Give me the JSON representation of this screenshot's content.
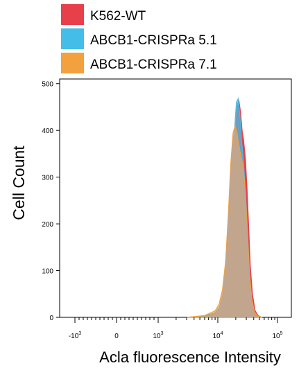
{
  "chart_data": {
    "type": "area",
    "title": "",
    "xlabel": "Acla fluorescence Intensity",
    "ylabel": "Cell Count",
    "x_scale": "biexponential",
    "xlim": [
      -2000,
      150000
    ],
    "ylim": [
      0,
      510
    ],
    "y_ticks": [
      {
        "value": 0,
        "label": "0"
      },
      {
        "value": 100,
        "label": "100"
      },
      {
        "value": 200,
        "label": "200"
      },
      {
        "value": 300,
        "label": "300"
      },
      {
        "value": 400,
        "label": "400"
      },
      {
        "value": 500,
        "label": "500"
      }
    ],
    "x_ticks": [
      {
        "value": -1000,
        "base": "-10",
        "exp": "3"
      },
      {
        "value": 0,
        "base": "0",
        "exp": ""
      },
      {
        "value": 1000,
        "base": "10",
        "exp": "3"
      },
      {
        "value": 10000,
        "base": "10",
        "exp": "4"
      },
      {
        "value": 100000,
        "base": "10",
        "exp": "5"
      }
    ],
    "legend": {
      "position": "top-left",
      "entries": [
        {
          "name": "K562-WT",
          "color": "#e8404a"
        },
        {
          "name": "ABCB1-CRISPRa 5.1",
          "color": "#45bde9"
        },
        {
          "name": "ABCB1-CRISPRa 7.1",
          "color": "#f3a03e"
        }
      ]
    },
    "series": [
      {
        "name": "K562-WT",
        "color": "#e8404a",
        "points": [
          [
            3000,
            0
          ],
          [
            6000,
            2
          ],
          [
            9000,
            8
          ],
          [
            11000,
            20
          ],
          [
            13000,
            45
          ],
          [
            15000,
            100
          ],
          [
            16500,
            180
          ],
          [
            18000,
            290
          ],
          [
            19500,
            390
          ],
          [
            21000,
            450
          ],
          [
            22500,
            465
          ],
          [
            24000,
            440
          ],
          [
            25500,
            400
          ],
          [
            27000,
            380
          ],
          [
            29000,
            340
          ],
          [
            31000,
            270
          ],
          [
            33000,
            190
          ],
          [
            35000,
            110
          ],
          [
            38000,
            50
          ],
          [
            42000,
            15
          ],
          [
            47000,
            4
          ],
          [
            55000,
            0
          ]
        ]
      },
      {
        "name": "ABCB1-CRISPRa 5.1",
        "color": "#45bde9",
        "points": [
          [
            3000,
            0
          ],
          [
            6000,
            3
          ],
          [
            9000,
            10
          ],
          [
            11000,
            25
          ],
          [
            13000,
            55
          ],
          [
            14500,
            110
          ],
          [
            16000,
            200
          ],
          [
            17500,
            300
          ],
          [
            19000,
            400
          ],
          [
            20500,
            460
          ],
          [
            22000,
            468
          ],
          [
            23500,
            430
          ],
          [
            25000,
            380
          ],
          [
            27000,
            330
          ],
          [
            29000,
            270
          ],
          [
            31000,
            200
          ],
          [
            33000,
            130
          ],
          [
            35000,
            70
          ],
          [
            38000,
            30
          ],
          [
            42000,
            8
          ],
          [
            47000,
            2
          ],
          [
            55000,
            0
          ]
        ]
      },
      {
        "name": "ABCB1-CRISPRa 7.1",
        "color": "#f3a03e",
        "points": [
          [
            3000,
            0
          ],
          [
            6000,
            4
          ],
          [
            9000,
            14
          ],
          [
            10500,
            28
          ],
          [
            12000,
            60
          ],
          [
            13500,
            120
          ],
          [
            15000,
            220
          ],
          [
            16500,
            330
          ],
          [
            18000,
            395
          ],
          [
            19500,
            410
          ],
          [
            21000,
            395
          ],
          [
            22500,
            370
          ],
          [
            24000,
            350
          ],
          [
            26000,
            330
          ],
          [
            28000,
            290
          ],
          [
            30000,
            230
          ],
          [
            32000,
            160
          ],
          [
            34000,
            95
          ],
          [
            37000,
            40
          ],
          [
            41000,
            12
          ],
          [
            46000,
            3
          ],
          [
            55000,
            0
          ]
        ]
      }
    ]
  }
}
